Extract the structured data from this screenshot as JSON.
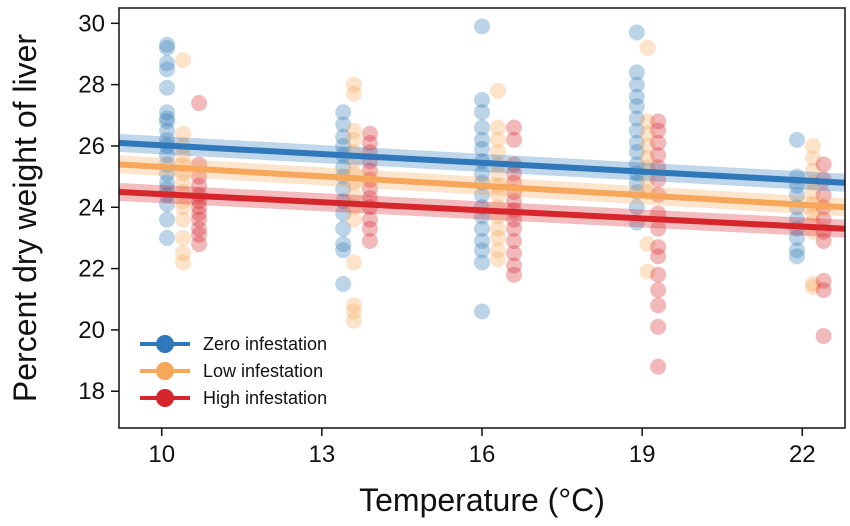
{
  "chart_data": {
    "type": "scatter",
    "title": "",
    "xlabel": "Temperature (°C)",
    "ylabel": "Percent dry weight of liver",
    "xlim": [
      9.2,
      22.8
    ],
    "ylim": [
      16.8,
      30.5
    ],
    "xticks": [
      10,
      13,
      16,
      19,
      22
    ],
    "yticks": [
      18,
      20,
      22,
      24,
      26,
      28,
      30
    ],
    "grid": false,
    "legend_position": "bottom-left",
    "series": [
      {
        "name": "Zero infestation",
        "color": "#2f78b9",
        "trend": [
          [
            9.2,
            26.1
          ],
          [
            22.8,
            24.8
          ]
        ],
        "points": [
          [
            10.1,
            29.3
          ],
          [
            10.1,
            29.2
          ],
          [
            10.1,
            28.7
          ],
          [
            10.1,
            28.5
          ],
          [
            10.1,
            27.9
          ],
          [
            10.1,
            27.1
          ],
          [
            10.1,
            26.8
          ],
          [
            10.1,
            26.5
          ],
          [
            10.1,
            26.2
          ],
          [
            10.1,
            26.0
          ],
          [
            10.1,
            25.7
          ],
          [
            10.1,
            25.4
          ],
          [
            10.1,
            25.1
          ],
          [
            10.1,
            24.8
          ],
          [
            10.1,
            24.6
          ],
          [
            10.1,
            24.4
          ],
          [
            10.1,
            24.1
          ],
          [
            10.1,
            23.6
          ],
          [
            10.1,
            23.0
          ],
          [
            10.1,
            26.9
          ],
          [
            13.4,
            27.1
          ],
          [
            13.4,
            26.7
          ],
          [
            13.4,
            26.3
          ],
          [
            13.4,
            26.0
          ],
          [
            13.4,
            25.7
          ],
          [
            13.4,
            25.3
          ],
          [
            13.4,
            25.0
          ],
          [
            13.4,
            24.6
          ],
          [
            13.4,
            24.2
          ],
          [
            13.4,
            23.8
          ],
          [
            13.4,
            23.3
          ],
          [
            13.4,
            22.8
          ],
          [
            13.4,
            22.6
          ],
          [
            13.4,
            21.5
          ],
          [
            16.0,
            29.9
          ],
          [
            16.0,
            27.5
          ],
          [
            16.0,
            27.1
          ],
          [
            16.0,
            26.6
          ],
          [
            16.0,
            26.2
          ],
          [
            16.0,
            25.9
          ],
          [
            16.0,
            25.5
          ],
          [
            16.0,
            25.1
          ],
          [
            16.0,
            24.8
          ],
          [
            16.0,
            24.4
          ],
          [
            16.0,
            24.0
          ],
          [
            16.0,
            23.7
          ],
          [
            16.0,
            23.3
          ],
          [
            16.0,
            22.9
          ],
          [
            16.0,
            22.6
          ],
          [
            16.0,
            22.2
          ],
          [
            16.0,
            20.6
          ],
          [
            18.9,
            29.7
          ],
          [
            18.9,
            28.4
          ],
          [
            18.9,
            28.0
          ],
          [
            18.9,
            27.6
          ],
          [
            18.9,
            27.3
          ],
          [
            18.9,
            26.9
          ],
          [
            18.9,
            26.5
          ],
          [
            18.9,
            26.1
          ],
          [
            18.9,
            25.8
          ],
          [
            18.9,
            25.4
          ],
          [
            18.9,
            25.1
          ],
          [
            18.9,
            24.8
          ],
          [
            18.9,
            24.5
          ],
          [
            18.9,
            24.0
          ],
          [
            18.9,
            23.5
          ],
          [
            21.9,
            26.2
          ],
          [
            21.9,
            25.0
          ],
          [
            21.9,
            24.7
          ],
          [
            21.9,
            24.4
          ],
          [
            21.9,
            24.0
          ],
          [
            21.9,
            23.6
          ],
          [
            21.9,
            23.3
          ],
          [
            21.9,
            23.0
          ],
          [
            21.9,
            22.6
          ],
          [
            21.9,
            22.4
          ]
        ]
      },
      {
        "name": "Low infestation",
        "color": "#f6a75a",
        "trend": [
          [
            9.2,
            25.4
          ],
          [
            22.8,
            24.0
          ]
        ],
        "points": [
          [
            10.4,
            28.8
          ],
          [
            10.4,
            26.4
          ],
          [
            10.4,
            26.0
          ],
          [
            10.4,
            25.7
          ],
          [
            10.4,
            25.4
          ],
          [
            10.4,
            25.1
          ],
          [
            10.4,
            24.8
          ],
          [
            10.4,
            24.5
          ],
          [
            10.4,
            24.2
          ],
          [
            10.4,
            24.0
          ],
          [
            10.4,
            23.6
          ],
          [
            10.4,
            23.0
          ],
          [
            10.4,
            22.5
          ],
          [
            10.4,
            22.2
          ],
          [
            13.6,
            28.0
          ],
          [
            13.6,
            27.7
          ],
          [
            13.6,
            26.5
          ],
          [
            13.6,
            26.2
          ],
          [
            13.6,
            25.8
          ],
          [
            13.6,
            25.5
          ],
          [
            13.6,
            25.1
          ],
          [
            13.6,
            24.8
          ],
          [
            13.6,
            24.4
          ],
          [
            13.6,
            24.0
          ],
          [
            13.6,
            23.6
          ],
          [
            13.6,
            22.2
          ],
          [
            13.6,
            20.8
          ],
          [
            13.6,
            20.6
          ],
          [
            13.6,
            20.3
          ],
          [
            16.3,
            27.8
          ],
          [
            16.3,
            26.6
          ],
          [
            16.3,
            26.2
          ],
          [
            16.3,
            25.8
          ],
          [
            16.3,
            25.4
          ],
          [
            16.3,
            25.1
          ],
          [
            16.3,
            24.7
          ],
          [
            16.3,
            24.4
          ],
          [
            16.3,
            24.0
          ],
          [
            16.3,
            23.7
          ],
          [
            16.3,
            23.3
          ],
          [
            16.3,
            23.0
          ],
          [
            16.3,
            22.6
          ],
          [
            16.3,
            22.3
          ],
          [
            19.1,
            29.2
          ],
          [
            19.1,
            26.8
          ],
          [
            19.1,
            26.4
          ],
          [
            19.1,
            26.0
          ],
          [
            19.1,
            25.6
          ],
          [
            19.1,
            25.3
          ],
          [
            19.1,
            24.9
          ],
          [
            19.1,
            24.5
          ],
          [
            19.1,
            22.8
          ],
          [
            19.1,
            21.9
          ],
          [
            22.2,
            26.0
          ],
          [
            22.2,
            25.6
          ],
          [
            22.2,
            25.2
          ],
          [
            22.2,
            24.8
          ],
          [
            22.2,
            24.5
          ],
          [
            22.2,
            24.1
          ],
          [
            22.2,
            23.8
          ],
          [
            22.2,
            23.5
          ],
          [
            22.2,
            23.2
          ],
          [
            22.2,
            21.5
          ],
          [
            22.2,
            21.4
          ]
        ]
      },
      {
        "name": "High infestation",
        "color": "#d7262b",
        "trend": [
          [
            9.2,
            24.5
          ],
          [
            22.8,
            23.3
          ]
        ],
        "points": [
          [
            10.7,
            27.4
          ],
          [
            10.7,
            25.4
          ],
          [
            10.7,
            25.0
          ],
          [
            10.7,
            24.7
          ],
          [
            10.7,
            24.4
          ],
          [
            10.7,
            24.2
          ],
          [
            10.7,
            24.0
          ],
          [
            10.7,
            23.8
          ],
          [
            10.7,
            23.6
          ],
          [
            10.7,
            23.3
          ],
          [
            10.7,
            23.1
          ],
          [
            10.7,
            22.8
          ],
          [
            13.9,
            26.4
          ],
          [
            13.9,
            26.1
          ],
          [
            13.9,
            25.8
          ],
          [
            13.9,
            25.5
          ],
          [
            13.9,
            25.2
          ],
          [
            13.9,
            24.9
          ],
          [
            13.9,
            24.6
          ],
          [
            13.9,
            24.3
          ],
          [
            13.9,
            24.0
          ],
          [
            13.9,
            23.6
          ],
          [
            13.9,
            23.3
          ],
          [
            13.9,
            22.9
          ],
          [
            16.6,
            26.6
          ],
          [
            16.6,
            26.2
          ],
          [
            16.6,
            25.4
          ],
          [
            16.6,
            25.1
          ],
          [
            16.6,
            24.8
          ],
          [
            16.6,
            24.5
          ],
          [
            16.6,
            24.2
          ],
          [
            16.6,
            23.9
          ],
          [
            16.6,
            23.6
          ],
          [
            16.6,
            23.3
          ],
          [
            16.6,
            22.9
          ],
          [
            16.6,
            22.5
          ],
          [
            16.6,
            22.1
          ],
          [
            16.6,
            21.8
          ],
          [
            19.3,
            26.8
          ],
          [
            19.3,
            26.5
          ],
          [
            19.3,
            26.1
          ],
          [
            19.3,
            25.7
          ],
          [
            19.3,
            25.3
          ],
          [
            19.3,
            24.9
          ],
          [
            19.3,
            24.4
          ],
          [
            19.3,
            23.8
          ],
          [
            19.3,
            23.3
          ],
          [
            19.3,
            22.7
          ],
          [
            19.3,
            22.4
          ],
          [
            19.3,
            21.8
          ],
          [
            19.3,
            21.3
          ],
          [
            19.3,
            20.8
          ],
          [
            19.3,
            20.1
          ],
          [
            19.3,
            18.8
          ],
          [
            22.4,
            25.4
          ],
          [
            22.4,
            24.9
          ],
          [
            22.4,
            24.4
          ],
          [
            22.4,
            24.0
          ],
          [
            22.4,
            23.6
          ],
          [
            22.4,
            23.2
          ],
          [
            22.4,
            22.9
          ],
          [
            22.4,
            21.6
          ],
          [
            22.4,
            21.3
          ],
          [
            22.4,
            19.8
          ]
        ]
      }
    ]
  }
}
